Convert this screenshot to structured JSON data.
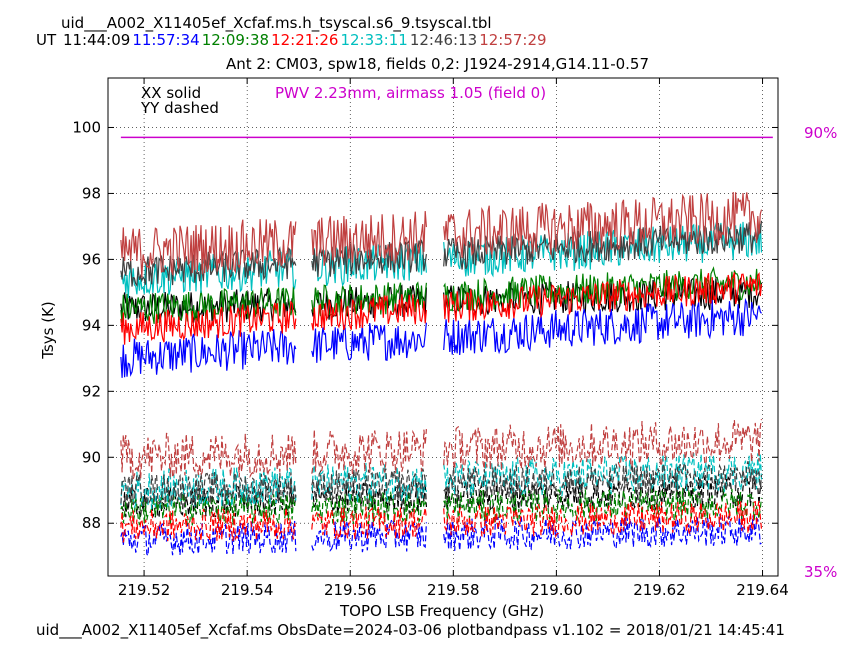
{
  "header": {
    "file_title": "uid___A002_X11405ef_Xcfaf.ms.h_tsyscal.s6_9.tsyscal.tbl",
    "ut_label": "UT",
    "times": [
      {
        "text": "11:44:09",
        "color": "#000000"
      },
      {
        "text": "11:57:34",
        "color": "#0000ff"
      },
      {
        "text": "12:09:38",
        "color": "#008000"
      },
      {
        "text": "12:21:26",
        "color": "#ff0000"
      },
      {
        "text": "12:33:11",
        "color": "#00bfbf"
      },
      {
        "text": "12:46:13",
        "color": "#404040"
      },
      {
        "text": "12:57:29",
        "color": "#c04040"
      }
    ],
    "subtitle": "Ant 2: CM03,  spw18,  fields 0,2: J1924-2914,G14.11-0.57"
  },
  "footer": "uid___A002_X11405ef_Xcfaf.ms  ObsDate=2024-03-06   plotbandpass v1.102 = 2018/01/21 14:45:41",
  "chart_data": {
    "type": "line",
    "xlabel": "TOPO LSB Frequency (GHz)",
    "ylabel": "Tsys (K)",
    "xlim": [
      219.513,
      219.643
    ],
    "ylim": [
      86.4,
      101.5
    ],
    "xticks": [
      219.52,
      219.54,
      219.56,
      219.58,
      219.6,
      219.62,
      219.64
    ],
    "xtick_labels": [
      "219.52",
      "219.54",
      "219.56",
      "219.58",
      "219.60",
      "219.62",
      "219.64"
    ],
    "yticks": [
      88,
      90,
      92,
      94,
      96,
      98,
      100
    ],
    "ytick_labels": [
      "88",
      "90",
      "92",
      "94",
      "96",
      "98",
      "100"
    ],
    "grid": true,
    "legend": [
      "XX solid",
      "YY dashed"
    ],
    "annotation": "PWV 2.23mm, airmass 1.05 (field 0)",
    "annotation_color": "#cc00cc",
    "atm_line": {
      "value": 99.7,
      "color": "#cc00cc",
      "right_labels": [
        "90%",
        "35%"
      ]
    },
    "gaps": [
      [
        219.5495,
        219.5525
      ],
      [
        219.575,
        219.578
      ]
    ],
    "series": [
      {
        "name": "11:44:09 XX",
        "pol": "XX",
        "color": "#000000",
        "start": 94.5,
        "end": 95.0,
        "noise": 0.5
      },
      {
        "name": "11:57:34 XX",
        "pol": "XX",
        "color": "#0000ff",
        "start": 93.0,
        "end": 94.3,
        "noise": 0.6
      },
      {
        "name": "12:09:38 XX",
        "pol": "XX",
        "color": "#008000",
        "start": 94.5,
        "end": 95.3,
        "noise": 0.5
      },
      {
        "name": "12:21:26 XX",
        "pol": "XX",
        "color": "#ff0000",
        "start": 93.9,
        "end": 95.2,
        "noise": 0.5
      },
      {
        "name": "12:33:11 XX",
        "pol": "XX",
        "color": "#00bfbf",
        "start": 95.4,
        "end": 96.6,
        "noise": 0.6
      },
      {
        "name": "12:46:13 XX",
        "pol": "XX",
        "color": "#404040",
        "start": 95.6,
        "end": 96.7,
        "noise": 0.5
      },
      {
        "name": "12:57:29 XX",
        "pol": "XX",
        "color": "#c04040",
        "start": 96.2,
        "end": 97.3,
        "noise": 0.8
      },
      {
        "name": "11:44:09 YY",
        "pol": "YY",
        "color": "#000000",
        "start": 88.6,
        "end": 89.0,
        "noise": 0.5
      },
      {
        "name": "11:57:34 YY",
        "pol": "YY",
        "color": "#0000ff",
        "start": 87.5,
        "end": 87.8,
        "noise": 0.5
      },
      {
        "name": "12:09:38 YY",
        "pol": "YY",
        "color": "#008000",
        "start": 88.4,
        "end": 88.6,
        "noise": 0.5
      },
      {
        "name": "12:21:26 YY",
        "pol": "YY",
        "color": "#ff0000",
        "start": 87.9,
        "end": 88.2,
        "noise": 0.5
      },
      {
        "name": "12:33:11 YY",
        "pol": "YY",
        "color": "#00bfbf",
        "start": 89.0,
        "end": 89.6,
        "noise": 0.6
      },
      {
        "name": "12:46:13 YY",
        "pol": "YY",
        "color": "#404040",
        "start": 89.0,
        "end": 89.4,
        "noise": 0.5
      },
      {
        "name": "12:57:29 YY",
        "pol": "YY",
        "color": "#c04040",
        "start": 90.0,
        "end": 90.5,
        "noise": 0.7
      }
    ]
  }
}
